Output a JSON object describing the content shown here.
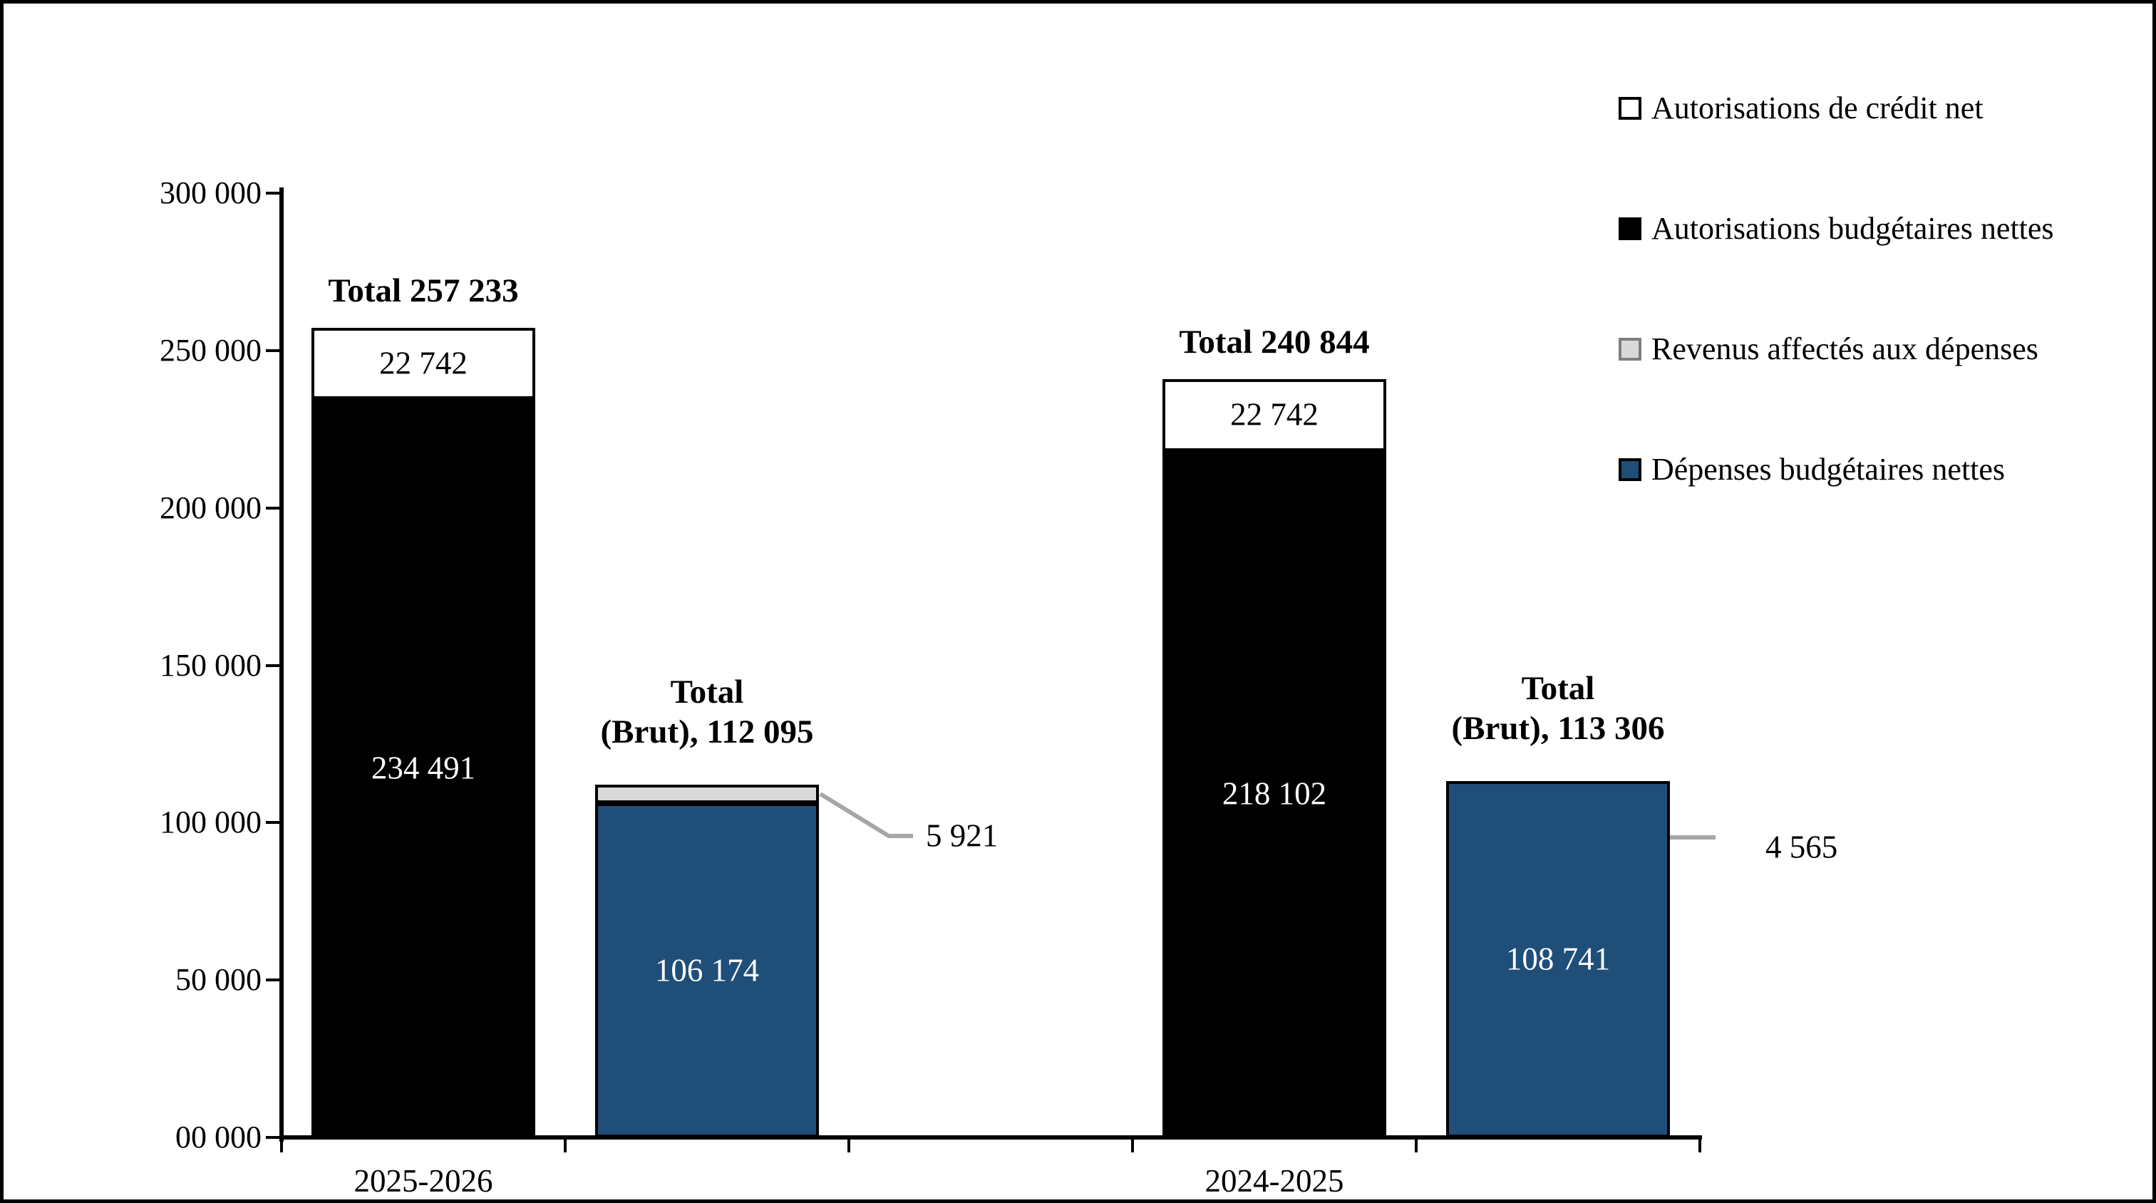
{
  "figure": {
    "background": "#FFFFFF",
    "border_color": "#000000"
  },
  "colors": {
    "bar_black": "#000000",
    "bar_white": "#FFFFFF",
    "bar_gray": "#D9D9D9",
    "bar_blue": "#1F4E79",
    "leader_line": "#A6A6A6",
    "text": "#000000"
  },
  "chart_data": {
    "type": "bar",
    "stacked": true,
    "orientation": "vertical",
    "grid": false,
    "ylim": [
      0,
      300000
    ],
    "y_ticks": [
      {
        "value": 300000,
        "label": "300 000"
      },
      {
        "value": 250000,
        "label": "250 000"
      },
      {
        "value": 200000,
        "label": "200 000"
      },
      {
        "value": 150000,
        "label": "150 000"
      },
      {
        "value": 100000,
        "label": "100 000"
      },
      {
        "value": 50000,
        "label": "50 000"
      },
      {
        "value": 0,
        "label": "00 000"
      }
    ],
    "categories": [
      "2025-2026",
      "2024-2025"
    ],
    "legend": {
      "position": "right",
      "entries": [
        {
          "label": "Autorisations de crédit net",
          "fill": "#FFFFFF",
          "border": "#000000"
        },
        {
          "label": "Autorisations budgétaires nettes",
          "fill": "#000000",
          "border": "#000000"
        },
        {
          "label": "Revenus affectés aux dépenses",
          "fill": "#D9D9D9",
          "border": "#7F7F7F"
        },
        {
          "label": "Dépenses budgétaires nettes",
          "fill": "#1F4E79",
          "border": "#000000"
        }
      ]
    },
    "bars": [
      {
        "category": "2025-2026",
        "total": 257233,
        "title_lines": [
          "Total 257 233"
        ],
        "segments": [
          {
            "series": "Autorisations budgétaires nettes",
            "value": 234491,
            "label": "234 491",
            "label_color": "#FFFFFF"
          },
          {
            "series": "Autorisations de crédit net",
            "value": 22742,
            "label": "22 742",
            "label_color": "#000000"
          }
        ]
      },
      {
        "category": "2025-2026",
        "total": 112095,
        "title_lines": [
          "Total",
          "(Brut), 112 095"
        ],
        "segments": [
          {
            "series": "Dépenses budgétaires nettes",
            "value": 106174,
            "label": "106 174",
            "label_color": "#FFFFFF"
          },
          {
            "series": "Revenus affectés aux dépenses",
            "value": 5921
          }
        ]
      },
      {
        "category": "2024-2025",
        "total": 240844,
        "title_lines": [
          "Total 240 844"
        ],
        "segments": [
          {
            "series": "Autorisations budgétaires nettes",
            "value": 218102,
            "label": "218 102",
            "label_color": "#FFFFFF"
          },
          {
            "series": "Autorisations de crédit net",
            "value": 22742,
            "label": "22 742",
            "label_color": "#000000"
          }
        ]
      },
      {
        "category": "2024-2025",
        "total": 113306,
        "title_lines": [
          "Total",
          "(Brut), 113 306"
        ],
        "segments": [
          {
            "series": "Dépenses budgétaires nettes",
            "value": 108741,
            "label": "108 741",
            "label_color": "#FFFFFF"
          },
          {
            "series": "Revenus affectés aux dépenses",
            "value": 4565
          }
        ]
      }
    ],
    "callouts": [
      {
        "bar": 1,
        "segment": 1,
        "label": "5 921"
      },
      {
        "bar": 3,
        "segment": 1,
        "label": "4 565"
      }
    ]
  }
}
